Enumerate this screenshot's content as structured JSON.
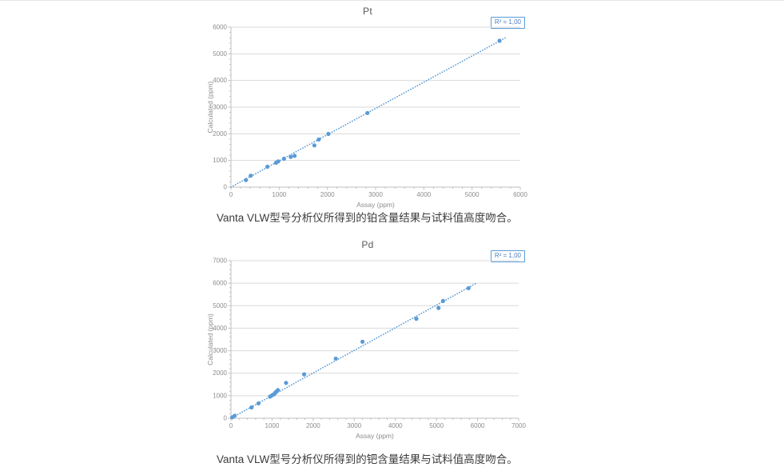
{
  "colors": {
    "accent": "#5b9bd5",
    "grid": "#d9d9d9",
    "axis": "#bfbfbf",
    "tick_label": "#8c8c8c",
    "chart_title": "#595959",
    "r2_text": "#4d7ebf",
    "caption_text": "#3c3c3c"
  },
  "chart_data": [
    {
      "type": "scatter",
      "title": "Pt",
      "annotation": "R² = 1,00",
      "xlabel": "Assay (ppm)",
      "ylabel": "Calculated (ppm)",
      "xlim": [
        0,
        6000
      ],
      "ylim": [
        0,
        6000
      ],
      "xtick_step": 1000,
      "ytick_step": 1000,
      "minor_tick_step": 200,
      "grid": "horizontal",
      "legend": "none",
      "points": [
        [
          310,
          265
        ],
        [
          410,
          430
        ],
        [
          755,
          765
        ],
        [
          935,
          915
        ],
        [
          980,
          965
        ],
        [
          1100,
          1065
        ],
        [
          1240,
          1135
        ],
        [
          1320,
          1175
        ],
        [
          1730,
          1565
        ],
        [
          1820,
          1785
        ],
        [
          2020,
          1995
        ],
        [
          2830,
          2780
        ],
        [
          5570,
          5490
        ]
      ],
      "trendline": {
        "style": "dotted",
        "from": [
          0,
          0
        ],
        "to": [
          5700,
          5610
        ]
      },
      "caption": "Vanta VLW型号分析仪所得到的铂含量结果与试料值高度吻合。"
    },
    {
      "type": "scatter",
      "title": "Pd",
      "annotation": "R² = 1,00",
      "xlabel": "Assay (ppm)",
      "ylabel": "Calculated (ppm)",
      "xlim": [
        0,
        7000
      ],
      "ylim": [
        0,
        7000
      ],
      "xtick_step": 1000,
      "ytick_step": 1000,
      "minor_tick_step": 200,
      "grid": "horizontal",
      "legend": "none",
      "points": [
        [
          30,
          40
        ],
        [
          90,
          110
        ],
        [
          500,
          480
        ],
        [
          670,
          660
        ],
        [
          950,
          960
        ],
        [
          1000,
          1020
        ],
        [
          1040,
          1060
        ],
        [
          1070,
          1110
        ],
        [
          1090,
          1160
        ],
        [
          1140,
          1250
        ],
        [
          1340,
          1570
        ],
        [
          1780,
          1950
        ],
        [
          2550,
          2650
        ],
        [
          3200,
          3400
        ],
        [
          4510,
          4420
        ],
        [
          5050,
          4900
        ],
        [
          5160,
          5210
        ],
        [
          5780,
          5780
        ]
      ],
      "trendline": {
        "style": "dotted",
        "from": [
          0,
          0
        ],
        "to": [
          5950,
          5980
        ]
      },
      "caption": "Vanta VLW型号分析仪所得到的钯含量结果与试料值高度吻合。"
    }
  ]
}
